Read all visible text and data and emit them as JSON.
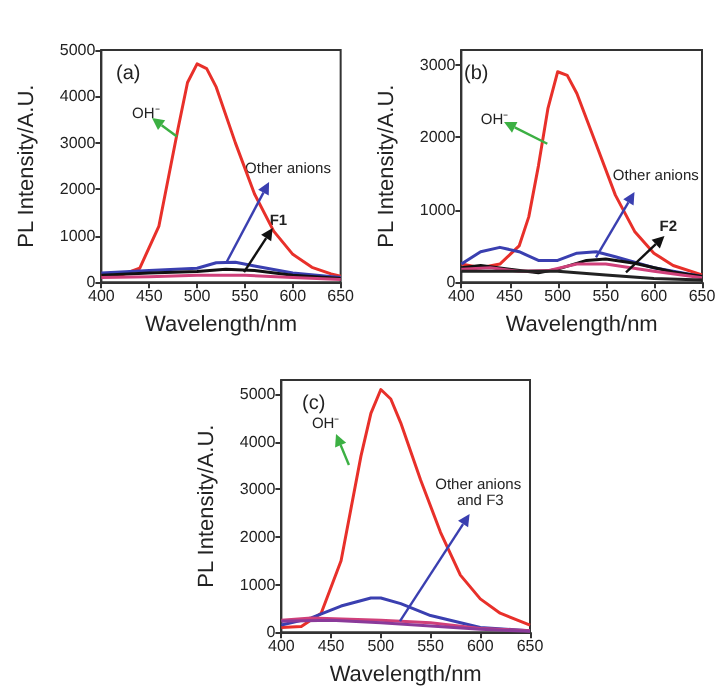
{
  "chart_data": [
    {
      "type": "line",
      "title": "(a)",
      "xlabel": "Wavelength/nm",
      "ylabel": "PL Intensity/A.U.",
      "xlim": [
        400,
        650
      ],
      "ylim": [
        0,
        5000
      ],
      "xticks": [
        400,
        450,
        500,
        550,
        600,
        650
      ],
      "yticks": [
        0,
        1000,
        2000,
        3000,
        4000,
        5000
      ],
      "marker": "none",
      "annotations": [
        {
          "text": "OH⁻",
          "x": 478,
          "y": 3150
        },
        {
          "text": "Other anions",
          "x": 530,
          "y": 400
        },
        {
          "text": "F1",
          "x": 550,
          "y": 200
        }
      ],
      "series": [
        {
          "color": "#e8302a",
          "x": [
            400,
            420,
            440,
            460,
            480,
            490,
            500,
            510,
            520,
            540,
            560,
            580,
            600,
            620,
            640,
            650
          ],
          "values": [
            150,
            150,
            300,
            1200,
            3300,
            4300,
            4700,
            4600,
            4200,
            3000,
            1900,
            1100,
            600,
            320,
            180,
            130
          ]
        },
        {
          "color": "#3a3fb0",
          "x": [
            400,
            450,
            500,
            520,
            540,
            560,
            600,
            650
          ],
          "values": [
            200,
            250,
            300,
            420,
            430,
            350,
            200,
            100
          ]
        },
        {
          "color": "#111111",
          "x": [
            400,
            450,
            500,
            530,
            560,
            600,
            650
          ],
          "values": [
            150,
            200,
            230,
            280,
            250,
            150,
            80
          ]
        },
        {
          "color": "#d0407a",
          "x": [
            400,
            450,
            500,
            550,
            600,
            650
          ],
          "values": [
            100,
            120,
            150,
            150,
            100,
            60
          ]
        }
      ]
    },
    {
      "type": "line",
      "title": "(b)",
      "xlabel": "Wavelength/nm",
      "ylabel": "PL Intensity/A.U.",
      "xlim": [
        400,
        650
      ],
      "ylim": [
        0,
        3200
      ],
      "xticks": [
        400,
        450,
        500,
        550,
        600,
        650
      ],
      "yticks": [
        0,
        1000,
        2000,
        3000
      ],
      "marker": "none",
      "annotations": [
        {
          "text": "OH⁻",
          "x": 490,
          "y": 1900
        },
        {
          "text": "Other anions",
          "x": 540,
          "y": 350
        },
        {
          "text": "F2",
          "x": 570,
          "y": 150
        }
      ],
      "series": [
        {
          "color": "#e8302a",
          "x": [
            400,
            420,
            440,
            460,
            470,
            480,
            490,
            500,
            510,
            520,
            540,
            560,
            580,
            600,
            620,
            650
          ],
          "values": [
            250,
            200,
            250,
            500,
            900,
            1600,
            2400,
            2900,
            2850,
            2600,
            1900,
            1200,
            700,
            400,
            230,
            100
          ]
        },
        {
          "color": "#3a3fb0",
          "x": [
            400,
            420,
            440,
            460,
            480,
            500,
            520,
            540,
            560,
            600,
            650
          ],
          "values": [
            250,
            420,
            480,
            420,
            300,
            300,
            400,
            420,
            350,
            200,
            80
          ]
        },
        {
          "color": "#111111",
          "x": [
            400,
            420,
            450,
            480,
            500,
            530,
            550,
            580,
            620,
            650
          ],
          "values": [
            200,
            230,
            180,
            130,
            180,
            300,
            320,
            260,
            140,
            80
          ]
        },
        {
          "color": "#d0407a",
          "x": [
            400,
            430,
            460,
            490,
            520,
            550,
            600,
            650
          ],
          "values": [
            180,
            200,
            150,
            160,
            250,
            250,
            150,
            60
          ]
        },
        {
          "color": "#222222",
          "x": [
            400,
            500,
            550,
            600,
            650
          ],
          "values": [
            150,
            150,
            100,
            50,
            30
          ]
        }
      ]
    },
    {
      "type": "line",
      "title": "(c)",
      "xlabel": "Wavelength/nm",
      "ylabel": "PL Intensity/A.U.",
      "xlim": [
        400,
        650
      ],
      "ylim": [
        0,
        5300
      ],
      "xticks": [
        400,
        450,
        500,
        550,
        600,
        650
      ],
      "yticks": [
        0,
        1000,
        2000,
        3000,
        4000,
        5000
      ],
      "marker": "none",
      "annotations": [
        {
          "text": "OH⁻",
          "x": 468,
          "y": 3500
        },
        {
          "text": "Other anions and F3",
          "x": 520,
          "y": 250
        }
      ],
      "series": [
        {
          "color": "#e8302a",
          "x": [
            400,
            420,
            440,
            460,
            480,
            490,
            500,
            510,
            520,
            540,
            560,
            580,
            600,
            620,
            650
          ],
          "values": [
            100,
            120,
            400,
            1500,
            3700,
            4600,
            5100,
            4900,
            4400,
            3200,
            2100,
            1200,
            700,
            400,
            150
          ]
        },
        {
          "color": "#3a3fb0",
          "x": [
            400,
            430,
            460,
            490,
            500,
            520,
            550,
            600,
            650
          ],
          "values": [
            150,
            300,
            550,
            720,
            720,
            600,
            350,
            100,
            30
          ]
        },
        {
          "color": "#d0407a",
          "x": [
            400,
            430,
            500,
            550,
            600,
            650
          ],
          "values": [
            250,
            300,
            250,
            200,
            80,
            30
          ]
        },
        {
          "color": "#8a3a9a",
          "x": [
            400,
            450,
            500,
            600,
            650
          ],
          "values": [
            230,
            250,
            200,
            60,
            20
          ]
        }
      ]
    }
  ]
}
